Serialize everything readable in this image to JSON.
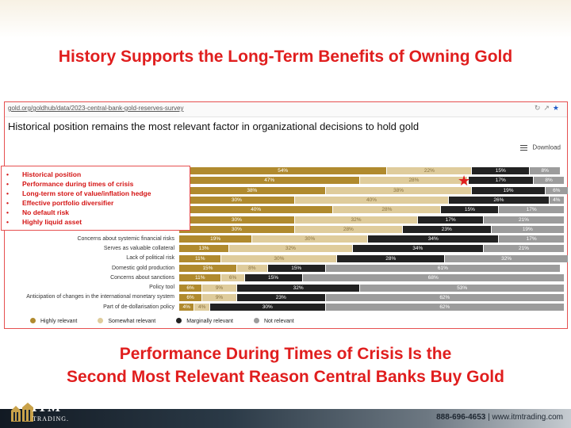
{
  "headline_top": "History Supports the Long-Term Benefits of Owning Gold",
  "headline_bottom_1": "Performance During Times of Crisis Is the",
  "headline_bottom_2": "Second Most Relevant Reason Central Banks Buy Gold",
  "browser": {
    "url": "gold.org/goldhub/data/2023-central-bank-gold-reserves-survey"
  },
  "download_label": "Download",
  "callout_items": [
    "Historical position",
    "Performance during times of crisis",
    "Long-term store of value/inflation hedge",
    "Effective portfolio diversifier",
    "No default risk",
    "Highly liquid asset"
  ],
  "colors": {
    "highly": "#b08a2e",
    "somewhat": "#dfcc9c",
    "marginally": "#222222",
    "not": "#9c9c9c",
    "accent_red": "#e01e1e"
  },
  "footer": {
    "logo_text": "ITM",
    "logo_sub": "TRADING.",
    "phone": "888-696-4653",
    "separator": "|",
    "website": "www.itmtrading.com"
  },
  "chart_data": {
    "type": "bar",
    "orientation": "horizontal-stacked-100",
    "title": "Historical position remains the most relevant factor in organizational decisions to hold gold",
    "categories": [
      "Historical position",
      "Performance during times of crisis",
      "Long-term store of value/inflation hedge",
      "Effective portfolio diversifier",
      "No default risk",
      "Highly liquid asset",
      "",
      "Concerns about systemic financial risks",
      "Serves as valuable collateral",
      "Lack of political risk",
      "Domestic gold production",
      "Concerns about sanctions",
      "Policy tool",
      "Anticipation of changes in the international monetary system",
      "Part of de-dollarisation policy"
    ],
    "series": [
      {
        "name": "Highly relevant",
        "values": [
          54,
          47,
          38,
          30,
          40,
          30,
          30,
          19,
          13,
          11,
          15,
          11,
          6,
          6,
          4
        ]
      },
      {
        "name": "Somewhat relevant",
        "values": [
          22,
          28,
          38,
          40,
          28,
          32,
          28,
          30,
          32,
          30,
          8,
          6,
          9,
          9,
          4
        ]
      },
      {
        "name": "Marginally relevant",
        "values": [
          15,
          17,
          19,
          26,
          15,
          17,
          23,
          34,
          34,
          28,
          15,
          15,
          32,
          23,
          30
        ]
      },
      {
        "name": "Not relevant",
        "values": [
          8,
          8,
          6,
          4,
          17,
          21,
          19,
          17,
          21,
          32,
          61,
          68,
          53,
          62,
          62
        ]
      }
    ],
    "legend_position": "bottom-left",
    "xlim": [
      0,
      100
    ]
  }
}
